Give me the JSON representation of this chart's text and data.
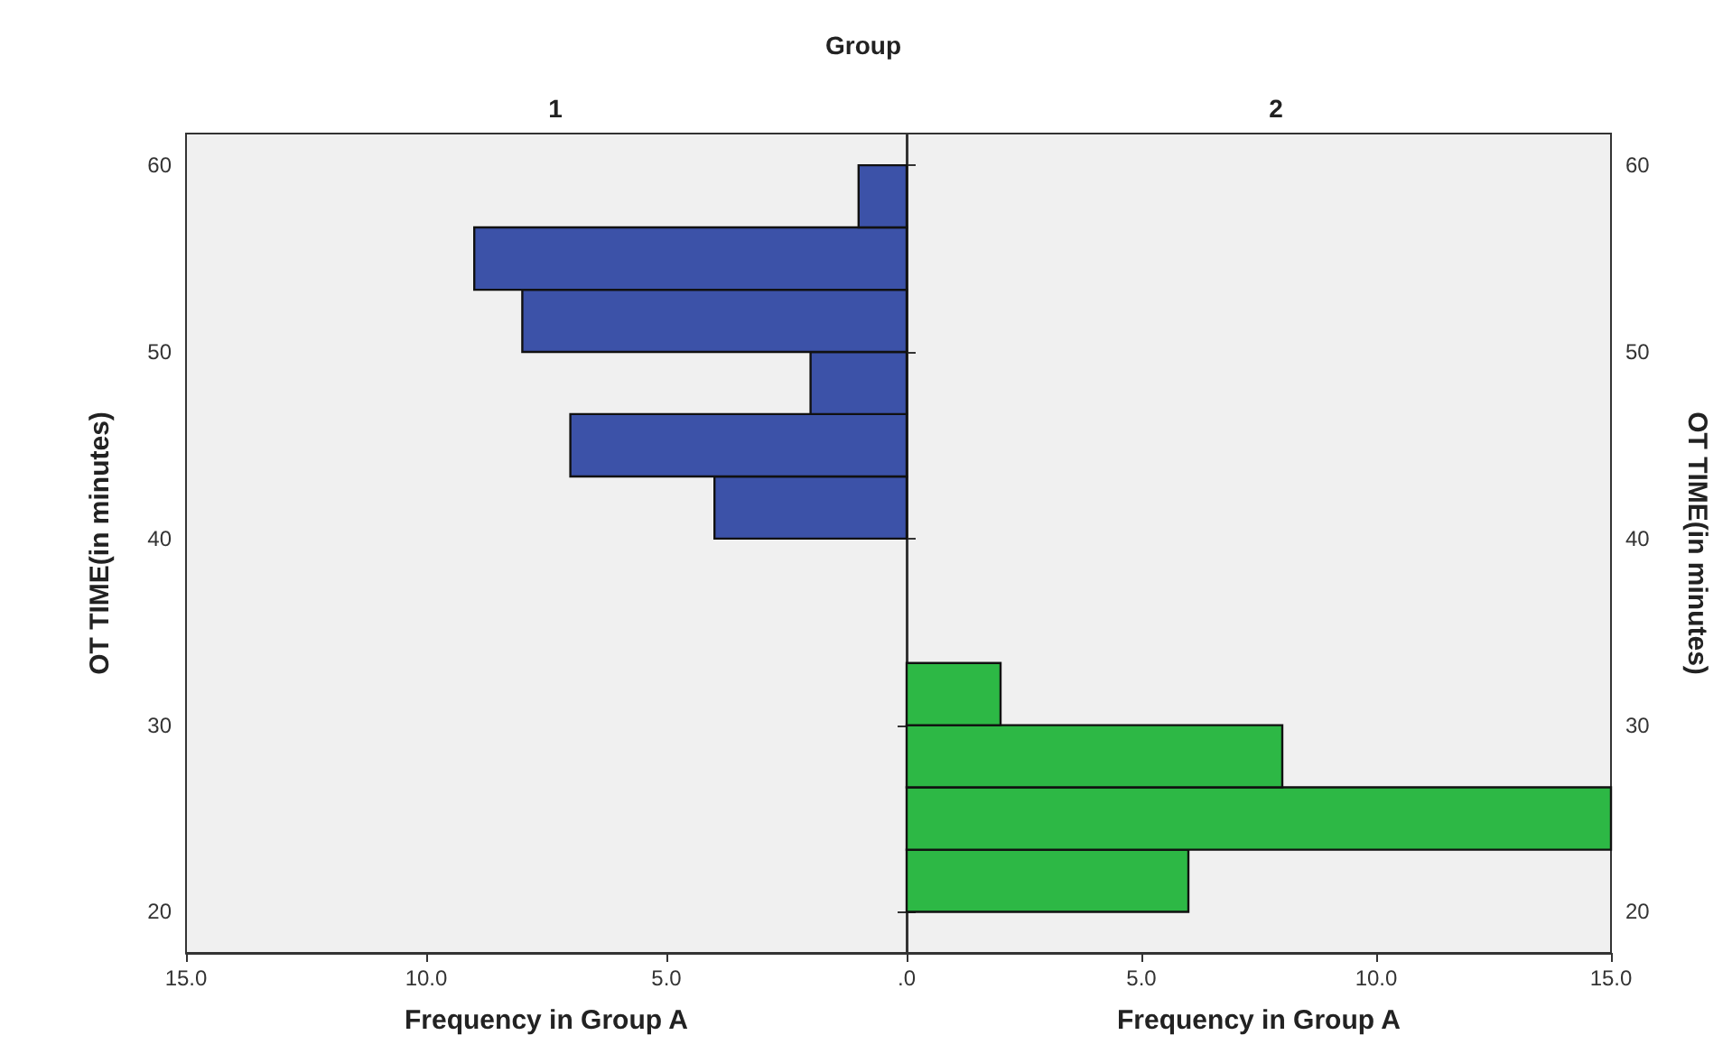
{
  "chart_data": [
    {
      "type": "histogram",
      "orientation": "horizontal",
      "title": "1",
      "annotations": [
        "Group"
      ],
      "xlabel": "Frequency in Group A",
      "ylabel": "OT TIME(in minutes)",
      "color": "#3c52a8",
      "bins": [
        40,
        43.33,
        46.67,
        50,
        53.33,
        56.67,
        60
      ],
      "values": [
        4,
        7,
        2,
        8,
        9,
        1
      ],
      "xlim": [
        15,
        0
      ],
      "xticks": [
        {
          "value": 15,
          "label": "15.0"
        },
        {
          "value": 10,
          "label": "10.0"
        },
        {
          "value": 5,
          "label": "5.0"
        },
        {
          "value": 0,
          "label": ".0"
        }
      ],
      "ylim": [
        17.8,
        61.7
      ],
      "yticks": [
        20,
        30,
        40,
        50,
        60
      ]
    },
    {
      "type": "histogram",
      "orientation": "horizontal",
      "title": "2",
      "xlabel": "Frequency in Group A",
      "ylabel": "OT TIME(in minutes)",
      "color": "#2db845",
      "bins": [
        20,
        23.33,
        26.67,
        30,
        33.33
      ],
      "values": [
        6,
        15,
        8,
        2
      ],
      "xlim": [
        0,
        15
      ],
      "xticks": [
        {
          "value": 0,
          "label": null
        },
        {
          "value": 5,
          "label": "5.0"
        },
        {
          "value": 10,
          "label": "10.0"
        },
        {
          "value": 15,
          "label": "15.0"
        }
      ],
      "ylim": [
        17.8,
        61.7
      ],
      "yticks": [
        20,
        30,
        40,
        50,
        60
      ]
    }
  ]
}
